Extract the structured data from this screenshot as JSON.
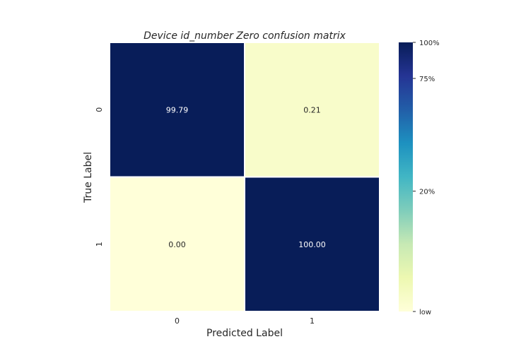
{
  "chart_data": {
    "type": "heatmap",
    "title": "Device id_number Zero confusion matrix",
    "xlabel": "Predicted Label",
    "ylabel": "True Label",
    "x_categories": [
      "0",
      "1"
    ],
    "y_categories": [
      "0",
      "1"
    ],
    "values": [
      [
        99.79,
        0.21
      ],
      [
        0.0,
        100.0
      ]
    ],
    "cell_labels": [
      [
        "99.79",
        "0.21"
      ],
      [
        "0.00",
        "100.00"
      ]
    ],
    "colorbar": {
      "colormap": "YlGnBu",
      "ticks": [
        {
          "value": 0,
          "label": "low"
        },
        {
          "value": 20,
          "label": "20%"
        },
        {
          "value": 75,
          "label": "75%"
        },
        {
          "value": 100,
          "label": "100%"
        }
      ],
      "range": [
        0,
        100
      ]
    },
    "grid": false,
    "colors": {
      "text_dark_cell": "#ffffff",
      "text_light_cell": "#262626",
      "cell_border": "#ffffff"
    }
  }
}
